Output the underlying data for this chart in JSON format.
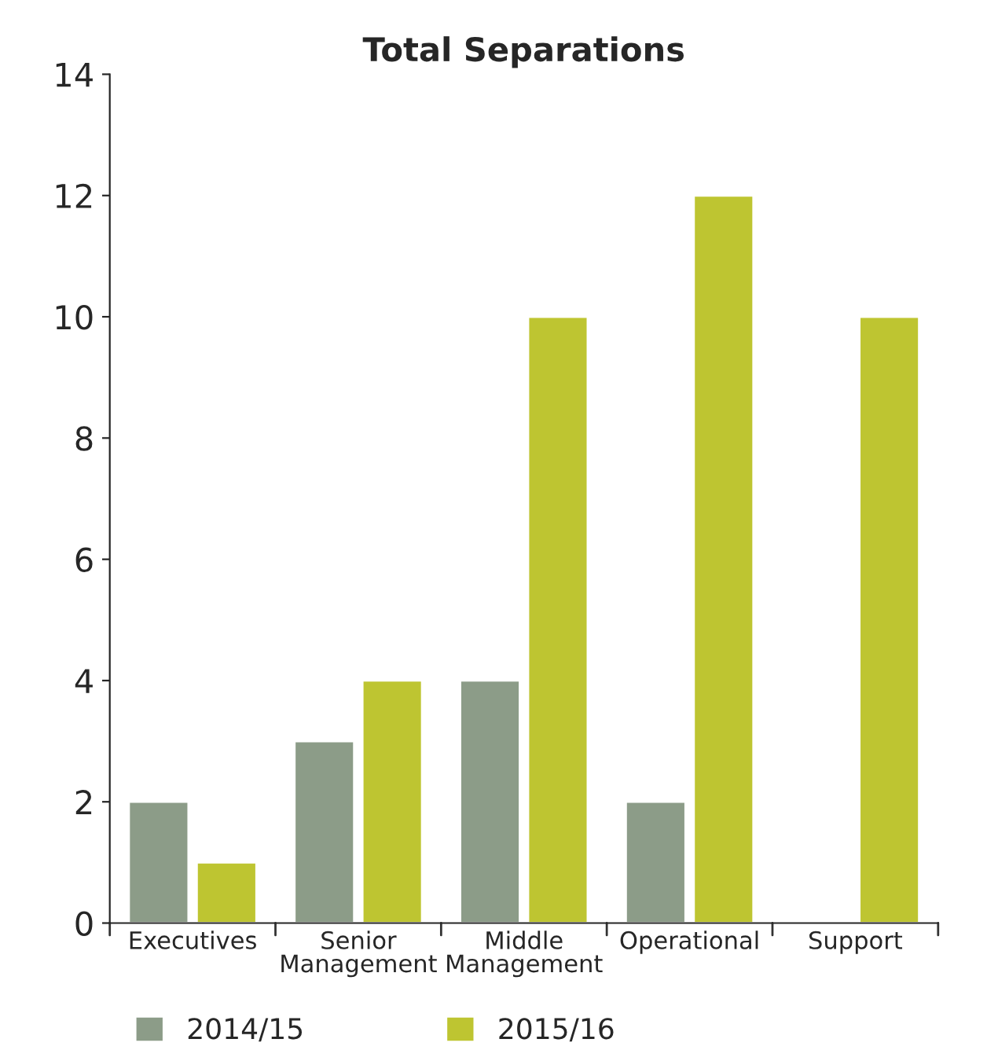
{
  "chart_data": {
    "type": "bar",
    "title": "Total Separations",
    "categories": [
      "Executives",
      "Senior\nManagement",
      "Middle\nManagement",
      "Operational",
      "Support"
    ],
    "series": [
      {
        "name": "2014/15",
        "color": "#8c9c88",
        "values": [
          2,
          3,
          4,
          2,
          null
        ]
      },
      {
        "name": "2015/16",
        "color": "#bec531",
        "values": [
          1,
          4,
          10,
          12,
          10
        ]
      }
    ],
    "ylim": [
      0,
      14
    ],
    "yticks": [
      0,
      2,
      4,
      6,
      8,
      10,
      12,
      14
    ],
    "grid": false,
    "legend": "bottom"
  }
}
